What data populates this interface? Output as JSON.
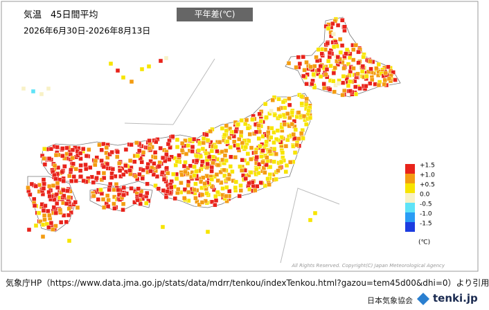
{
  "title": "気温　45日間平均",
  "period": "2026年6月30日-2026年8月13日",
  "badge": "平年差(℃)",
  "legend": {
    "items": [
      {
        "label": "+1.5",
        "color": "#e8231b"
      },
      {
        "label": "+1.0",
        "color": "#f39c12"
      },
      {
        "label": "+0.5",
        "color": "#f7e400"
      },
      {
        "label": "0.0",
        "color": "#f8f1c6"
      },
      {
        "label": "-0.5",
        "color": "#5fe3f7"
      },
      {
        "label": "-1.0",
        "color": "#2a9cf5"
      },
      {
        "label": "-1.5",
        "color": "#1c3ce0"
      }
    ],
    "unit": "(℃)"
  },
  "copyright": "All Rights Reserved. Copyright(C) Japan Meteorological Agency",
  "source": "気象庁HP（https://www.data.jma.go.jp/stats/data/mdrr/tenkou/indexTenkou.html?gazou=tem45d00&dhi=0）より引用",
  "footer": {
    "org": "日本気象協会",
    "brand": "tenki.jp"
  }
}
